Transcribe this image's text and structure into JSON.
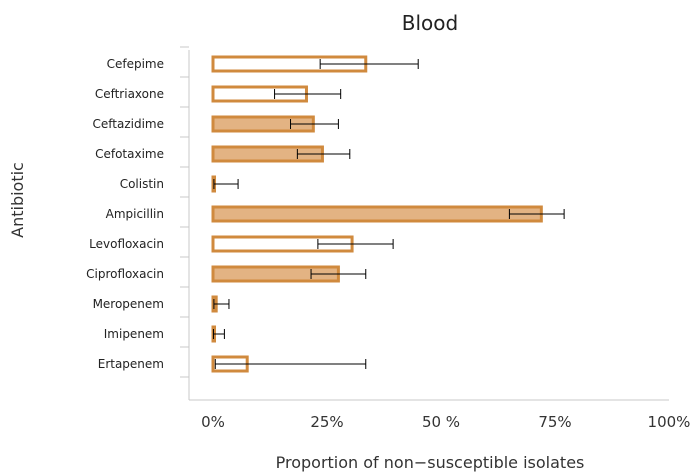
{
  "chart_data": {
    "type": "bar",
    "orientation": "horizontal",
    "title": "Blood",
    "xlabel": "Proportion of non−susceptible isolates",
    "ylabel": "Antibiotic",
    "xlim": [
      0,
      100
    ],
    "xticks": [
      "0%",
      "25%",
      "50 %",
      "75%",
      "100%"
    ],
    "categories": [
      "Cefepime",
      "Ceftriaxone",
      "Ceftazidime",
      "Cefotaxime",
      "Colistin",
      "Ampicillin",
      "Levofloxacin",
      "Ciprofloxacin",
      "Meropenem",
      "Imipenem",
      "Ertapenem"
    ],
    "values": [
      33.5,
      20.5,
      22,
      24,
      0.3,
      72,
      30.5,
      27.5,
      0.7,
      0.3,
      7.5
    ],
    "error_low": [
      23.5,
      13.5,
      17,
      18.5,
      0.2,
      65,
      23,
      21.5,
      0.2,
      0.1,
      0.5
    ],
    "error_high": [
      45,
      28,
      27.5,
      30,
      5.5,
      77,
      39.5,
      33.5,
      3.5,
      2.5,
      33.5
    ],
    "filled": [
      false,
      false,
      true,
      true,
      true,
      true,
      false,
      true,
      true,
      true,
      false
    ],
    "colors": {
      "bar_edge": "#d08a3e",
      "bar_fill": "#e3b383",
      "error_bar": "#000000"
    },
    "grid": false,
    "legend": "none"
  }
}
